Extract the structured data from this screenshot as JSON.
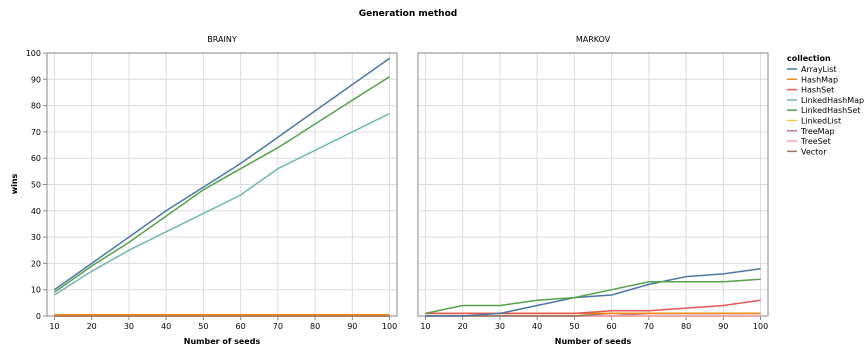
{
  "chart_data": {
    "type": "line",
    "title": "Generation method",
    "x": [
      10,
      20,
      30,
      40,
      50,
      60,
      70,
      80,
      90,
      100
    ],
    "xlabel": "Number of seeds",
    "ylabel": "wins",
    "xlim": [
      8,
      102
    ],
    "ylim": [
      0,
      100
    ],
    "x_ticks": [
      10,
      20,
      30,
      40,
      50,
      60,
      70,
      80,
      90,
      100
    ],
    "y_ticks": [
      0,
      10,
      20,
      30,
      40,
      50,
      60,
      70,
      80,
      90,
      100
    ],
    "grid": true,
    "legend": {
      "title": "collection",
      "placement": "right",
      "entries": [
        {
          "name": "ArrayList",
          "color": "#4c78a8"
        },
        {
          "name": "HashMap",
          "color": "#f58518"
        },
        {
          "name": "HashSet",
          "color": "#e45756"
        },
        {
          "name": "LinkedHashMap",
          "color": "#72b7b2"
        },
        {
          "name": "LinkedHashSet",
          "color": "#54a24b"
        },
        {
          "name": "LinkedList",
          "color": "#eeca3b"
        },
        {
          "name": "TreeMap",
          "color": "#b279a2"
        },
        {
          "name": "TreeSet",
          "color": "#ff9da6"
        },
        {
          "name": "Vector",
          "color": "#9d755d"
        }
      ]
    },
    "panels": [
      {
        "title": "BRAINY",
        "series": [
          {
            "name": "ArrayList",
            "values": [
              10,
              20,
              30,
              40,
              49,
              58,
              68,
              78,
              88,
              98
            ]
          },
          {
            "name": "LinkedHashSet",
            "values": [
              9,
              19,
              28,
              38,
              48,
              56,
              64,
              73,
              82,
              91
            ]
          },
          {
            "name": "LinkedHashMap",
            "values": [
              8,
              17,
              25,
              32,
              39,
              46,
              56,
              63,
              70,
              77
            ]
          },
          {
            "name": "HashSet",
            "values": [
              0,
              0,
              0,
              0,
              0,
              0,
              0,
              0,
              0,
              0
            ]
          },
          {
            "name": "TreeMap",
            "values": [
              0,
              0,
              0,
              0,
              0,
              0,
              0,
              0,
              0,
              0
            ]
          },
          {
            "name": "TreeSet",
            "values": [
              0,
              0,
              0,
              0,
              0,
              0,
              0,
              0,
              0,
              0
            ]
          },
          {
            "name": "Vector",
            "values": [
              0,
              0,
              0,
              0,
              0,
              0,
              0,
              0,
              0,
              0
            ]
          },
          {
            "name": "LinkedList",
            "values": [
              0.5,
              0.5,
              0.5,
              0.5,
              0.5,
              0.5,
              0.5,
              0.5,
              0.5,
              0.5
            ]
          },
          {
            "name": "HashMap",
            "values": [
              0.5,
              0.5,
              0.5,
              0.5,
              0.5,
              0.5,
              0.5,
              0.5,
              0.5,
              0.5
            ]
          }
        ]
      },
      {
        "title": "MARKOV",
        "series": [
          {
            "name": "LinkedHashMap",
            "values": [
              0,
              0,
              0,
              0,
              0,
              0,
              0,
              0,
              0,
              0
            ]
          },
          {
            "name": "TreeMap",
            "values": [
              0,
              0,
              0,
              0,
              0,
              0,
              1,
              1,
              1,
              1
            ]
          },
          {
            "name": "TreeSet",
            "values": [
              0,
              0,
              0,
              0,
              0,
              0,
              0,
              0,
              0,
              0
            ]
          },
          {
            "name": "Vector",
            "values": [
              0,
              0,
              0,
              0,
              0,
              1,
              1,
              1,
              1,
              1
            ]
          },
          {
            "name": "LinkedList",
            "values": [
              1,
              1,
              1,
              1,
              1,
              1,
              1,
              1,
              1,
              1
            ]
          },
          {
            "name": "HashMap",
            "values": [
              1,
              1,
              1,
              1,
              1,
              1,
              1,
              1,
              1,
              1
            ]
          },
          {
            "name": "HashSet",
            "values": [
              1,
              1,
              1,
              1,
              1,
              2,
              2,
              3,
              4,
              6
            ]
          },
          {
            "name": "ArrayList",
            "values": [
              0,
              0,
              1,
              4,
              7,
              8,
              12,
              15,
              16,
              18
            ]
          },
          {
            "name": "LinkedHashSet",
            "values": [
              1,
              4,
              4,
              6,
              7,
              10,
              13,
              13,
              13,
              14
            ]
          }
        ]
      }
    ]
  }
}
